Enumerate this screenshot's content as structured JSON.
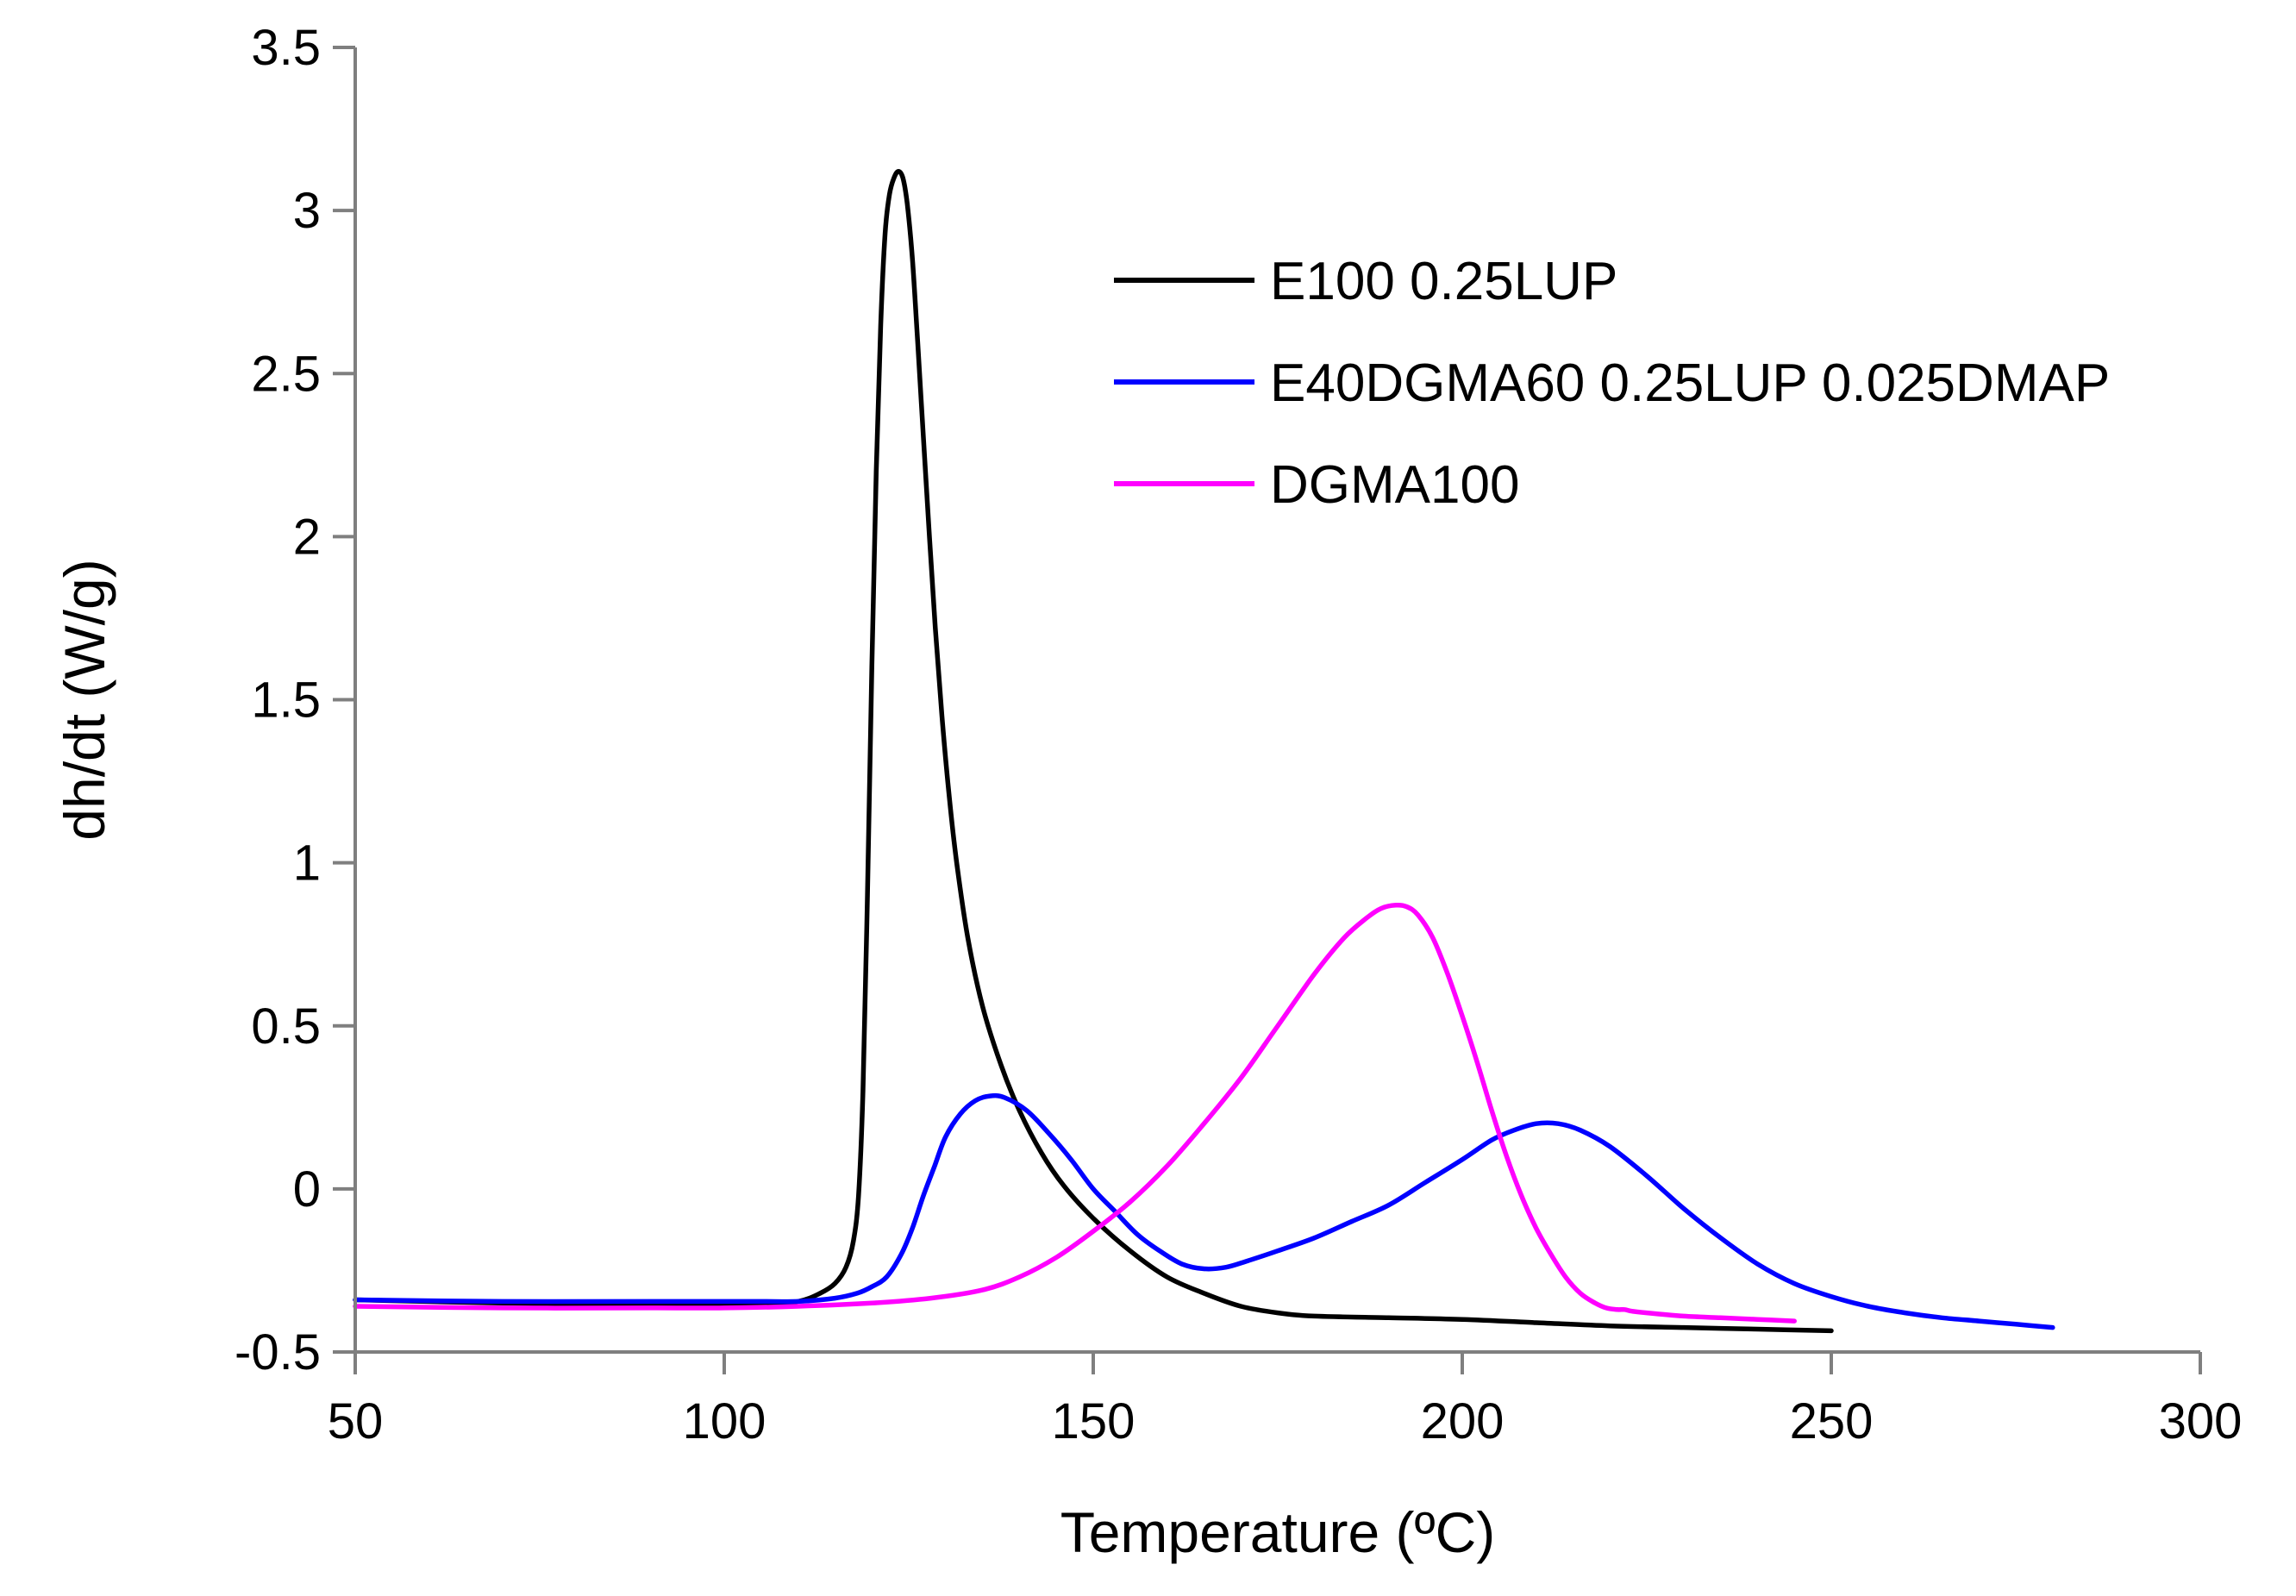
{
  "chart_data": {
    "type": "line",
    "title": "",
    "xlabel": "Temperature (ºC)",
    "ylabel": "dh/dt (W/g)",
    "xlim": [
      50,
      300
    ],
    "ylim": [
      -0.5,
      3.5
    ],
    "xticks": [
      50,
      100,
      150,
      200,
      250,
      300
    ],
    "xtick_labels": [
      "50",
      "100",
      "150",
      "200",
      "250",
      "300"
    ],
    "yticks": [
      -0.5,
      0,
      0.5,
      1,
      1.5,
      2,
      2.5,
      3,
      3.5
    ],
    "ytick_labels": [
      "-0.5",
      "0",
      "0.5",
      "1",
      "1.5",
      "2",
      "2.5",
      "3",
      "3.5"
    ],
    "grid": false,
    "legend_position": "top-right",
    "series": [
      {
        "name": "E100 0.25LUP",
        "color": "#000000",
        "x": [
          50,
          70,
          90,
          105,
          110,
          113,
          115,
          116.5,
          117.5,
          118.2,
          118.8,
          119.4,
          120,
          120.6,
          121.2,
          121.8,
          122.4,
          123,
          123.6,
          124.2,
          124.8,
          125.5,
          126.2,
          127,
          127.8,
          128.6,
          129.5,
          130.5,
          131.5,
          133,
          135,
          137.5,
          140,
          143,
          146,
          150,
          155,
          160,
          165,
          170,
          175,
          180,
          190,
          200,
          210,
          220,
          230,
          240,
          250
        ],
        "y": [
          -0.34,
          -0.35,
          -0.355,
          -0.355,
          -0.345,
          -0.32,
          -0.29,
          -0.24,
          -0.16,
          -0.02,
          0.3,
          0.9,
          1.6,
          2.2,
          2.65,
          2.93,
          3.05,
          3.1,
          3.12,
          3.1,
          3.02,
          2.85,
          2.6,
          2.3,
          2.0,
          1.72,
          1.45,
          1.2,
          1.0,
          0.77,
          0.56,
          0.38,
          0.24,
          0.11,
          0.01,
          -0.09,
          -0.19,
          -0.27,
          -0.32,
          -0.36,
          -0.38,
          -0.39,
          -0.395,
          -0.4,
          -0.41,
          -0.42,
          -0.425,
          -0.43,
          -0.435
        ]
      },
      {
        "name": "E40DGMA60 0.25LUP 0.025DMAP",
        "color": "#0000ff",
        "x": [
          50,
          70,
          90,
          105,
          110,
          115,
          118,
          120,
          122,
          124,
          125.5,
          127,
          128.5,
          130,
          132,
          134,
          136,
          138,
          141,
          144,
          147,
          150,
          153,
          156,
          159,
          162,
          165,
          168,
          171,
          175,
          180,
          185,
          190,
          195,
          200,
          204,
          207,
          210,
          213,
          216,
          220,
          225,
          230,
          235,
          240,
          245,
          250,
          255,
          260,
          265,
          270,
          275,
          280
        ],
        "y": [
          -0.34,
          -0.345,
          -0.345,
          -0.345,
          -0.345,
          -0.335,
          -0.32,
          -0.3,
          -0.27,
          -0.2,
          -0.12,
          -0.02,
          0.07,
          0.16,
          0.23,
          0.27,
          0.285,
          0.28,
          0.24,
          0.17,
          0.09,
          0.0,
          -0.07,
          -0.14,
          -0.19,
          -0.23,
          -0.245,
          -0.24,
          -0.22,
          -0.19,
          -0.15,
          -0.1,
          -0.05,
          0.02,
          0.09,
          0.15,
          0.18,
          0.2,
          0.2,
          0.18,
          0.13,
          0.04,
          -0.06,
          -0.15,
          -0.23,
          -0.29,
          -0.33,
          -0.36,
          -0.38,
          -0.395,
          -0.405,
          -0.415,
          -0.425
        ]
      },
      {
        "name": "DGMA100",
        "color": "#ff00ff",
        "x": [
          50,
          70,
          90,
          100,
          110,
          120,
          128,
          135,
          140,
          145,
          150,
          155,
          160,
          165,
          170,
          175,
          180,
          184,
          187,
          189,
          191,
          192.5,
          194,
          196,
          198,
          200,
          202,
          204,
          206,
          208,
          210,
          212,
          214,
          216,
          218,
          219.5,
          221,
          222,
          223,
          225,
          230,
          235,
          240,
          245
        ],
        "y": [
          -0.36,
          -0.365,
          -0.365,
          -0.365,
          -0.36,
          -0.35,
          -0.335,
          -0.31,
          -0.27,
          -0.21,
          -0.13,
          -0.04,
          0.07,
          0.2,
          0.34,
          0.5,
          0.66,
          0.77,
          0.83,
          0.86,
          0.87,
          0.865,
          0.84,
          0.77,
          0.66,
          0.53,
          0.39,
          0.24,
          0.1,
          -0.02,
          -0.12,
          -0.2,
          -0.27,
          -0.32,
          -0.35,
          -0.365,
          -0.37,
          -0.37,
          -0.375,
          -0.38,
          -0.39,
          -0.395,
          -0.4,
          -0.405
        ]
      }
    ]
  }
}
